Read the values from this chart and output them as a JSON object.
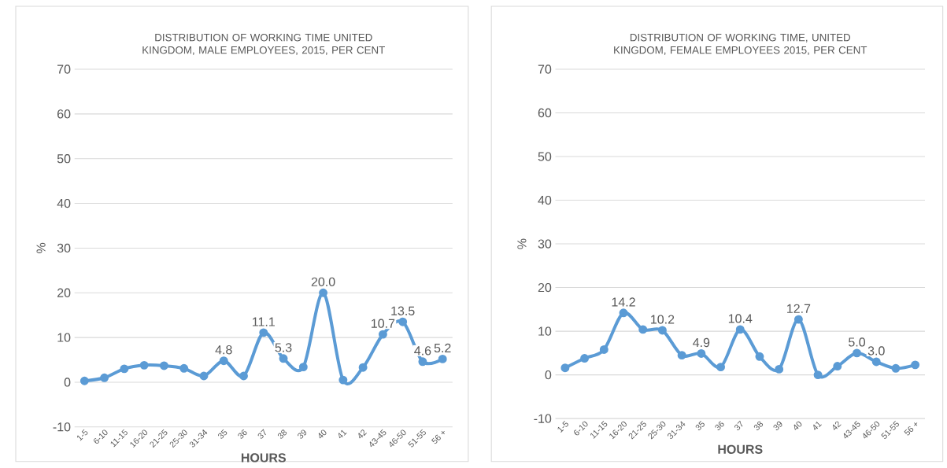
{
  "chart_data": [
    {
      "type": "line",
      "title": "DISTRIBUTION OF WORKING TIME UNITED KINGDOM, MALE EMPLOYEES, 2015, PER CENT",
      "xlabel": "HOURS",
      "ylabel": "%",
      "categories": [
        "1-5",
        "6-10",
        "11-15",
        "16-20",
        "21-25",
        "25-30",
        "31-34",
        "35",
        "36",
        "37",
        "38",
        "39",
        "40",
        "41",
        "42",
        "43-45",
        "46-50",
        "51-55",
        "56 +"
      ],
      "series": [
        {
          "color": "#5b9bd5",
          "values": [
            0.3,
            1.0,
            3.0,
            3.8,
            3.7,
            3.1,
            1.4,
            4.8,
            1.4,
            11.1,
            5.3,
            3.4,
            20.0,
            0.5,
            3.3,
            10.7,
            13.5,
            4.6,
            5.2
          ],
          "value_labels": [
            null,
            null,
            null,
            null,
            null,
            null,
            null,
            "4.8",
            null,
            "11.1",
            "5.3",
            null,
            "20.0",
            null,
            null,
            "10.7",
            "13.5",
            "4.6",
            "5.2"
          ]
        }
      ],
      "ylim": [
        -10,
        70
      ],
      "yticks": [
        -10,
        0,
        10,
        20,
        30,
        40,
        50,
        60,
        70
      ],
      "grid": "y",
      "marker": "circle",
      "line_style": "solid"
    },
    {
      "type": "line",
      "title": "DISTRIBUTION OF WORKING TIME, UNITED KINGDOM, FEMALE EMPLOYEES 2015, PER CENT",
      "xlabel": "HOURS",
      "ylabel": "%",
      "categories": [
        "1-5",
        "6-10",
        "11-15",
        "16-20",
        "21-25",
        "25-30",
        "31-34",
        "35",
        "36",
        "37",
        "38",
        "39",
        "40",
        "41",
        "42",
        "43-45",
        "46-50",
        "51-55",
        "56 +"
      ],
      "series": [
        {
          "color": "#5b9bd5",
          "values": [
            1.6,
            3.8,
            5.8,
            14.2,
            10.4,
            10.2,
            4.5,
            4.9,
            1.8,
            10.4,
            4.2,
            1.3,
            12.7,
            0.0,
            2.0,
            5.0,
            3.0,
            1.5,
            2.3
          ],
          "value_labels": [
            null,
            null,
            null,
            "14.2",
            null,
            "10.2",
            null,
            "4.9",
            null,
            "10.4",
            null,
            null,
            "12.7",
            null,
            null,
            "5.0",
            "3.0",
            null,
            null
          ]
        }
      ],
      "ylim": [
        -10,
        70
      ],
      "yticks": [
        -10,
        0,
        10,
        20,
        30,
        40,
        50,
        60,
        70
      ],
      "grid": "y",
      "marker": "circle",
      "line_style": "solid"
    }
  ]
}
